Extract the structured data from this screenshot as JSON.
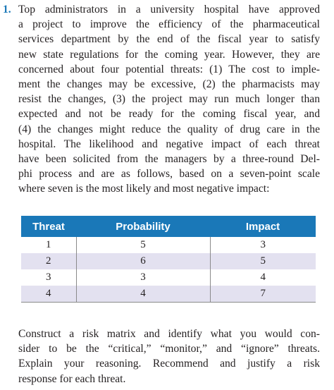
{
  "problem": {
    "number": "1.",
    "intro_lines": [
      "Top administrators in a university hospital have approved",
      "a project to improve the efficiency of the pharmaceutical",
      "services department by the end of the fiscal year to satisfy",
      "new state regulations for the coming year. However, they are",
      "concerned about four potential threats: (1) The cost to imple-",
      "ment the changes may be excessive, (2) the pharmacists may",
      "resist the changes, (3) the project may run much longer than",
      "expected and not be ready for the coming fiscal year, and",
      "(4) the changes might reduce the quality of drug care in the",
      "hospital. The likelihood and negative impact of each threat",
      "have been solicited from the managers by a three-round Del-",
      "phi process and are as follows, based on a seven-point scale",
      "where seven is the most likely and most negative impact:"
    ],
    "table": {
      "headers": [
        "Threat",
        "Probability",
        "Impact"
      ],
      "rows": [
        [
          "1",
          "5",
          "3"
        ],
        [
          "2",
          "6",
          "5"
        ],
        [
          "3",
          "3",
          "4"
        ],
        [
          "4",
          "4",
          "7"
        ]
      ]
    },
    "question_lines": [
      "Construct a risk matrix and identify what you would con-",
      "sider to be the “critical,” “monitor,” and “ignore” threats.",
      "Explain your reasoning. Recommend and justify a risk",
      "response for each threat."
    ],
    "colors": {
      "accent": "#1a78b8",
      "row_shade": "#e3e1f0",
      "text": "#231f20"
    }
  }
}
